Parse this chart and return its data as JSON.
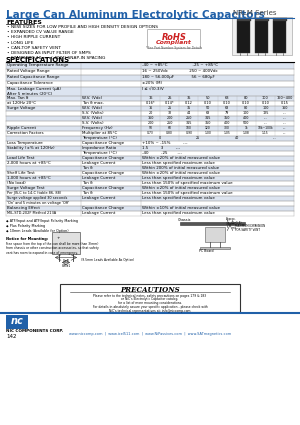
{
  "title": "Large Can Aluminum Electrolytic Capacitors",
  "series": "NRLM Series",
  "title_color": "#2060a8",
  "features_title": "FEATURES",
  "features": [
    "NEW SIZES FOR LOW PROFILE AND HIGH DENSITY DESIGN OPTIONS",
    "EXPANDED CV VALUE RANGE",
    "HIGH RIPPLE CURRENT",
    "LONG LIFE",
    "CAN-TOP SAFETY VENT",
    "DESIGNED AS INPUT FILTER OF SMPS",
    "STANDARD 10mm (.400\") SNAP-IN SPACING"
  ],
  "rohs_text1": "RoHS",
  "rohs_text2": "Compliant",
  "rohs_subtext": "*See Part Number System for Details",
  "specs_title": "SPECIFICATIONS",
  "bg_color": "#ffffff",
  "header_color": "#2060a8",
  "table_alt_bg": "#dce4f0",
  "footer_text": "142",
  "company": "NIC COMPONENTS CORP.",
  "websites": "www.niccomp.com  |  www.icel511.com  |  www.NiPassives.com  |  www.SATmagnetics.com"
}
